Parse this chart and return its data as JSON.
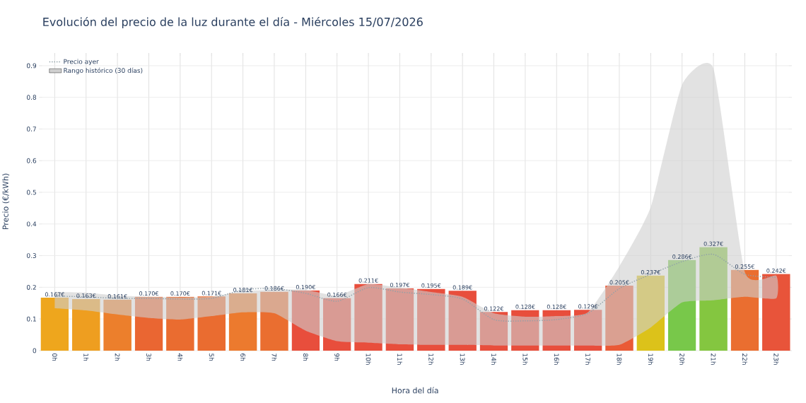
{
  "chart_data": {
    "type": "bar",
    "title": "Evolución del precio de la luz durante el día - Miércoles 15/07/2026",
    "xlabel": "Hora del día",
    "ylabel": "Precio (€/kWh)",
    "categories": [
      "0h",
      "1h",
      "2h",
      "3h",
      "4h",
      "5h",
      "6h",
      "7h",
      "8h",
      "9h",
      "10h",
      "11h",
      "12h",
      "13h",
      "14h",
      "15h",
      "16h",
      "17h",
      "18h",
      "19h",
      "20h",
      "21h",
      "22h",
      "23h"
    ],
    "series": [
      {
        "values": [
          0.167,
          0.163,
          0.161,
          0.17,
          0.17,
          0.171,
          0.181,
          0.186,
          0.19,
          0.166,
          0.211,
          0.197,
          0.195,
          0.189,
          0.122,
          0.128,
          0.128,
          0.129,
          0.205,
          0.237,
          0.286,
          0.327,
          0.255,
          0.242
        ],
        "value_labels": [
          "0.167€",
          "0.163€",
          "0.161€",
          "0.170€",
          "0.170€",
          "0.171€",
          "0.181€",
          "0.186€",
          "0.190€",
          "0.166€",
          "0.211€",
          "0.197€",
          "0.195€",
          "0.189€",
          "0.122€",
          "0.128€",
          "0.128€",
          "0.129€",
          "0.205€",
          "0.237€",
          "0.286€",
          "0.327€",
          "0.255€",
          "0.242€"
        ],
        "colors": [
          "#eea61d",
          "#ee9e20",
          "#ec7f2c",
          "#ea6632",
          "#ea6c30",
          "#ea6c30",
          "#ec7a2e",
          "#ea6e30",
          "#e84e3c",
          "#e84e3c",
          "#e84e3c",
          "#e84e3c",
          "#e84e3c",
          "#e84e3c",
          "#e84e3c",
          "#e84e3c",
          "#e84e3c",
          "#e84e3c",
          "#ea5a36",
          "#dcc21a",
          "#78c84a",
          "#84c640",
          "#ea6e30",
          "#e8543a"
        ]
      },
      {
        "type": "line",
        "name": "Precio ayer",
        "color": "#8fa0a8",
        "line_style": "dotted",
        "values": [
          0.172,
          0.17,
          0.165,
          0.165,
          0.163,
          0.165,
          0.192,
          0.196,
          0.181,
          0.156,
          0.199,
          0.185,
          0.177,
          0.163,
          0.098,
          0.094,
          0.098,
          0.118,
          0.196,
          0.241,
          0.281,
          0.304,
          0.241,
          0.232
        ]
      },
      {
        "type": "area",
        "name": "Rango histórico (30 días)",
        "color": "#cfcfcf",
        "lower": [
          0.134,
          0.127,
          0.114,
          0.103,
          0.098,
          0.109,
          0.121,
          0.118,
          0.063,
          0.03,
          0.025,
          0.02,
          0.018,
          0.018,
          0.016,
          0.016,
          0.016,
          0.016,
          0.018,
          0.073,
          0.152,
          0.159,
          0.17,
          0.165
        ],
        "upper": [
          0.185,
          0.183,
          0.174,
          0.17,
          0.168,
          0.17,
          0.188,
          0.192,
          0.192,
          0.174,
          0.21,
          0.199,
          0.185,
          0.17,
          0.118,
          0.107,
          0.109,
          0.121,
          0.266,
          0.453,
          0.84,
          0.891,
          0.248,
          0.237
        ],
        "values": [
          null,
          null,
          null,
          null,
          null,
          null,
          null,
          null,
          null,
          null,
          null,
          null,
          null,
          null,
          null,
          null,
          null,
          null,
          null,
          null,
          null,
          null,
          null,
          null
        ]
      }
    ],
    "ylim": [
      0,
      0.94
    ],
    "yticks": [
      0,
      0.1,
      0.2,
      0.3,
      0.4,
      0.5,
      0.6,
      0.7,
      0.8,
      0.9
    ],
    "grid": true,
    "legend": "top left"
  }
}
